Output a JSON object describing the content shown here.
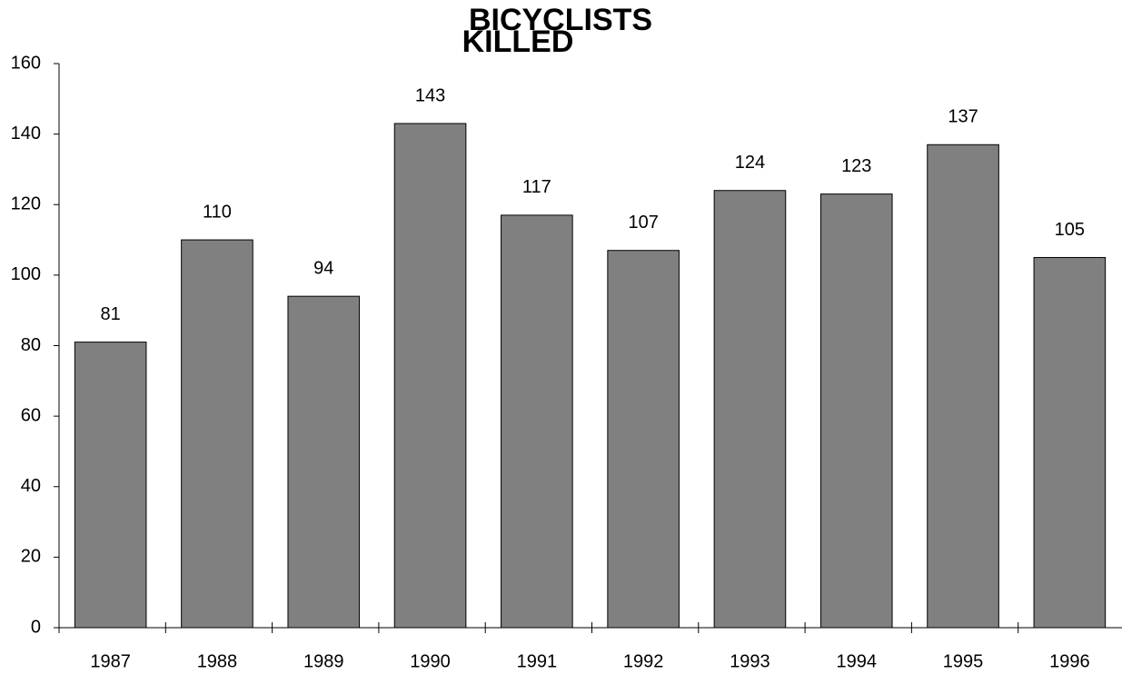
{
  "chart_data": {
    "type": "bar",
    "title": [
      "BICYCLISTS",
      "KILLED"
    ],
    "categories": [
      "1987",
      "1988",
      "1989",
      "1990",
      "1991",
      "1992",
      "1993",
      "1994",
      "1995",
      "1996"
    ],
    "values": [
      81,
      110,
      94,
      143,
      117,
      107,
      124,
      123,
      137,
      105
    ],
    "color": "#808080",
    "ylim": [
      0,
      160
    ],
    "yticks": [
      0,
      20,
      40,
      60,
      80,
      100,
      120,
      140,
      160
    ],
    "grid": false
  }
}
